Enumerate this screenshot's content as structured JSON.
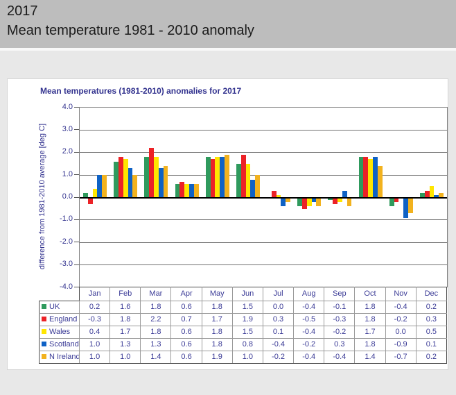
{
  "header": {
    "title": "2017",
    "subtitle": "Mean temperature 1981 - 2010 anomaly"
  },
  "chart_data": {
    "type": "bar",
    "title": "Mean temperatures (1981-2010) anomalies for 2017",
    "ylabel": "difference from 1981-2010 average [deg C]",
    "ylim": [
      -4.0,
      4.0
    ],
    "yticks": [
      4.0,
      3.0,
      2.0,
      1.0,
      0.0,
      -1.0,
      -2.0,
      -3.0,
      -4.0
    ],
    "grid": true,
    "legend_position": "table-left",
    "categories": [
      "Jan",
      "Feb",
      "Mar",
      "Apr",
      "May",
      "Jun",
      "Jul",
      "Aug",
      "Sep",
      "Oct",
      "Nov",
      "Dec"
    ],
    "series": [
      {
        "name": "UK",
        "color": "#2F9A5D",
        "values": [
          0.2,
          1.6,
          1.8,
          0.6,
          1.8,
          1.5,
          0.0,
          -0.4,
          -0.1,
          1.8,
          -0.4,
          0.2
        ]
      },
      {
        "name": "England",
        "color": "#EC2227",
        "values": [
          -0.3,
          1.8,
          2.2,
          0.7,
          1.7,
          1.9,
          0.3,
          -0.5,
          -0.3,
          1.8,
          -0.2,
          0.3
        ]
      },
      {
        "name": "Wales",
        "color": "#FFE600",
        "values": [
          0.4,
          1.7,
          1.8,
          0.6,
          1.8,
          1.5,
          0.1,
          -0.4,
          -0.2,
          1.7,
          0.0,
          0.5
        ]
      },
      {
        "name": "Scotland",
        "color": "#0F62C5",
        "values": [
          1.0,
          1.3,
          1.3,
          0.6,
          1.8,
          0.8,
          -0.4,
          -0.2,
          0.3,
          1.8,
          -0.9,
          0.1
        ]
      },
      {
        "name": "N Ireland",
        "color": "#F2B21E",
        "values": [
          1.0,
          1.0,
          1.4,
          0.6,
          1.9,
          1.0,
          -0.2,
          -0.4,
          -0.4,
          1.4,
          -0.7,
          0.2
        ]
      }
    ]
  },
  "colors": {
    "accent_text": "#33338F",
    "header_band": "#BDBDBD",
    "page_bg": "#E8E8E8",
    "gridline": "#707070",
    "zero_line": "#000000"
  }
}
